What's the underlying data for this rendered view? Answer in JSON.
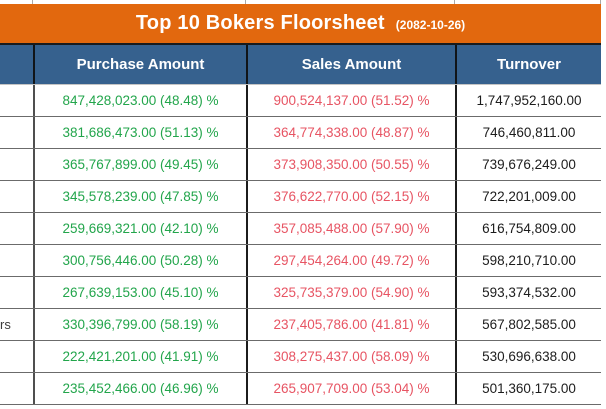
{
  "title": {
    "text": "Top 10 Bokers Floorsheet",
    "date": "(2082-10-26)"
  },
  "columns": {
    "broker": "",
    "purchase": "Purchase Amount",
    "sales": "Sales Amount",
    "turnover": "Turnover"
  },
  "colors": {
    "accent_orange": "#e2680e",
    "header_blue": "#36618e",
    "green": "#22a54b",
    "red": "#e75463"
  },
  "rows": [
    {
      "broker": "",
      "purchase": "847,428,023.00 (48.48) %",
      "sales": "900,524,137.00 (51.52) %",
      "turnover": "1,747,952,160.00"
    },
    {
      "broker": "",
      "purchase": "381,686,473.00 (51.13) %",
      "sales": "364,774,338.00 (48.87) %",
      "turnover": "746,460,811.00"
    },
    {
      "broker": "",
      "purchase": "365,767,899.00 (49.45) %",
      "sales": "373,908,350.00 (50.55) %",
      "turnover": "739,676,249.00"
    },
    {
      "broker": "",
      "purchase": "345,578,239.00 (47.85) %",
      "sales": "376,622,770.00 (52.15) %",
      "turnover": "722,201,009.00"
    },
    {
      "broker": "",
      "purchase": "259,669,321.00 (42.10) %",
      "sales": "357,085,488.00 (57.90) %",
      "turnover": "616,754,809.00"
    },
    {
      "broker": "",
      "purchase": "300,756,446.00 (50.28) %",
      "sales": "297,454,264.00 (49.72) %",
      "turnover": "598,210,710.00"
    },
    {
      "broker": "",
      "purchase": "267,639,153.00 (45.10) %",
      "sales": "325,735,379.00 (54.90) %",
      "turnover": "593,374,532.00"
    },
    {
      "broker": "rs",
      "purchase": "330,396,799.00 (58.19) %",
      "sales": "237,405,786.00 (41.81) %",
      "turnover": "567,802,585.00"
    },
    {
      "broker": "",
      "purchase": "222,421,201.00 (41.91) %",
      "sales": "308,275,437.00 (58.09) %",
      "turnover": "530,696,638.00"
    },
    {
      "broker": "",
      "purchase": "235,452,466.00 (46.96) %",
      "sales": "265,907,709.00 (53.04) %",
      "turnover": "501,360,175.00"
    }
  ]
}
